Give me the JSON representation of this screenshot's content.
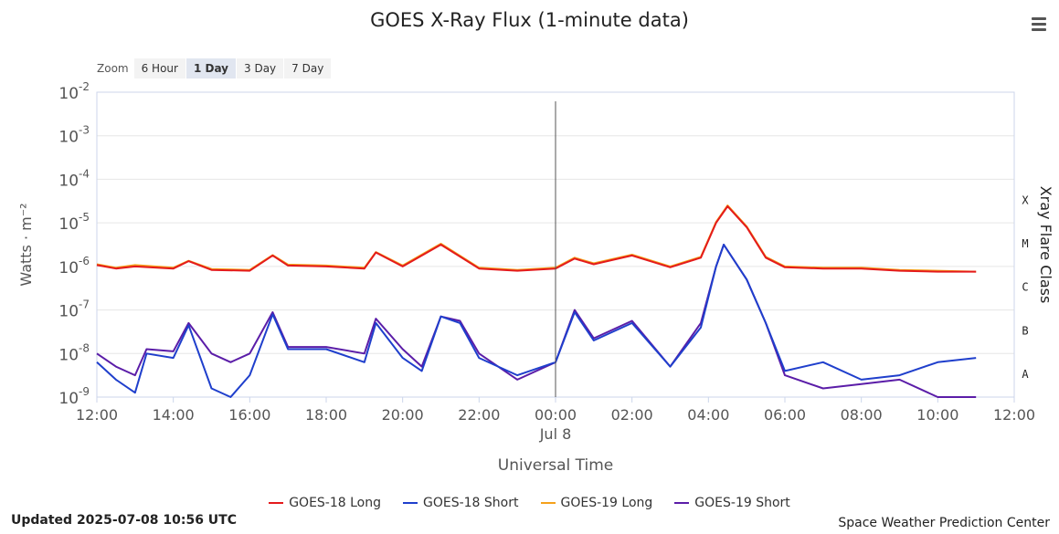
{
  "chart_data": {
    "type": "line",
    "title": "GOES X-Ray Flux (1-minute data)",
    "xlabel": "Universal Time",
    "ylabel": "Watts · m⁻²",
    "y2label": "Xray Flare Class",
    "yscale": "log",
    "ylim": [
      1e-09,
      0.01
    ],
    "xlim_hours": [
      12,
      36
    ],
    "x_ticks": [
      "12:00",
      "14:00",
      "16:00",
      "18:00",
      "20:00",
      "22:00",
      "00:00",
      "02:00",
      "04:00",
      "06:00",
      "08:00",
      "10:00",
      "12:00"
    ],
    "date_label": "Jul 8",
    "y_ticks": [
      {
        "base": "10",
        "exp": "-9"
      },
      {
        "base": "10",
        "exp": "-8"
      },
      {
        "base": "10",
        "exp": "-7"
      },
      {
        "base": "10",
        "exp": "-6"
      },
      {
        "base": "10",
        "exp": "-5"
      },
      {
        "base": "10",
        "exp": "-4"
      },
      {
        "base": "10",
        "exp": "-3"
      },
      {
        "base": "10",
        "exp": "-2"
      }
    ],
    "flare_classes": [
      {
        "label": "X",
        "level": -4
      },
      {
        "label": "M",
        "level": -5
      },
      {
        "label": "C",
        "level": -6
      },
      {
        "label": "B",
        "level": -7
      },
      {
        "label": "A",
        "level": -8
      }
    ],
    "grid": true,
    "legend_position": "bottom",
    "series": [
      {
        "name": "GOES-18 Long",
        "color": "#e41a1c",
        "points": [
          [
            12.0,
            -5.97
          ],
          [
            12.5,
            -6.05
          ],
          [
            13.0,
            -6.0
          ],
          [
            14.0,
            -6.05
          ],
          [
            14.4,
            -5.88
          ],
          [
            15.0,
            -6.08
          ],
          [
            16.0,
            -6.1
          ],
          [
            16.6,
            -5.75
          ],
          [
            17.0,
            -5.98
          ],
          [
            18.0,
            -6.0
          ],
          [
            19.0,
            -6.05
          ],
          [
            19.3,
            -5.68
          ],
          [
            20.0,
            -6.0
          ],
          [
            21.0,
            -5.5
          ],
          [
            22.0,
            -6.05
          ],
          [
            23.0,
            -6.1
          ],
          [
            24.0,
            -6.05
          ],
          [
            24.5,
            -5.82
          ],
          [
            25.0,
            -5.95
          ],
          [
            26.0,
            -5.75
          ],
          [
            27.0,
            -6.02
          ],
          [
            27.8,
            -5.8
          ],
          [
            28.2,
            -5.0
          ],
          [
            28.5,
            -4.62
          ],
          [
            29.0,
            -5.1
          ],
          [
            29.5,
            -5.8
          ],
          [
            30.0,
            -6.02
          ],
          [
            31.0,
            -6.05
          ],
          [
            32.0,
            -6.05
          ],
          [
            33.0,
            -6.1
          ],
          [
            34.0,
            -6.12
          ],
          [
            35.0,
            -6.12
          ]
        ]
      },
      {
        "name": "GOES-18 Short",
        "color": "#1f3fcc",
        "points": [
          [
            12.0,
            -8.2
          ],
          [
            12.5,
            -8.6
          ],
          [
            13.0,
            -8.9
          ],
          [
            13.3,
            -8.0
          ],
          [
            14.0,
            -8.1
          ],
          [
            14.4,
            -7.35
          ],
          [
            15.0,
            -8.8
          ],
          [
            15.5,
            -9.0
          ],
          [
            16.0,
            -8.5
          ],
          [
            16.6,
            -7.1
          ],
          [
            17.0,
            -7.9
          ],
          [
            18.0,
            -7.9
          ],
          [
            19.0,
            -8.2
          ],
          [
            19.3,
            -7.3
          ],
          [
            20.0,
            -8.1
          ],
          [
            20.5,
            -8.4
          ],
          [
            21.0,
            -7.15
          ],
          [
            21.5,
            -7.3
          ],
          [
            22.0,
            -8.1
          ],
          [
            23.0,
            -8.5
          ],
          [
            24.0,
            -8.2
          ],
          [
            24.5,
            -7.05
          ],
          [
            25.0,
            -7.7
          ],
          [
            26.0,
            -7.3
          ],
          [
            27.0,
            -8.3
          ],
          [
            27.8,
            -7.4
          ],
          [
            28.2,
            -6.0
          ],
          [
            28.4,
            -5.5
          ],
          [
            29.0,
            -6.3
          ],
          [
            29.5,
            -7.3
          ],
          [
            30.0,
            -8.4
          ],
          [
            31.0,
            -8.2
          ],
          [
            32.0,
            -8.6
          ],
          [
            33.0,
            -8.5
          ],
          [
            34.0,
            -8.2
          ],
          [
            35.0,
            -8.1
          ]
        ]
      },
      {
        "name": "GOES-19 Long",
        "color": "#f5a11a",
        "points": [
          [
            12.0,
            -5.95
          ],
          [
            12.5,
            -6.03
          ],
          [
            13.0,
            -5.97
          ],
          [
            14.0,
            -6.03
          ],
          [
            14.4,
            -5.87
          ],
          [
            15.0,
            -6.06
          ],
          [
            16.0,
            -6.08
          ],
          [
            16.6,
            -5.74
          ],
          [
            17.0,
            -5.96
          ],
          [
            18.0,
            -5.98
          ],
          [
            19.0,
            -6.03
          ],
          [
            19.3,
            -5.67
          ],
          [
            20.0,
            -5.98
          ],
          [
            21.0,
            -5.48
          ],
          [
            22.0,
            -6.03
          ],
          [
            23.0,
            -6.08
          ],
          [
            24.0,
            -6.03
          ],
          [
            24.5,
            -5.8
          ],
          [
            25.0,
            -5.93
          ],
          [
            26.0,
            -5.73
          ],
          [
            27.0,
            -6.0
          ],
          [
            27.8,
            -5.78
          ],
          [
            28.2,
            -4.98
          ],
          [
            28.5,
            -4.6
          ],
          [
            29.0,
            -5.08
          ],
          [
            29.5,
            -5.78
          ],
          [
            30.0,
            -6.0
          ],
          [
            31.0,
            -6.03
          ],
          [
            32.0,
            -6.03
          ],
          [
            33.0,
            -6.08
          ],
          [
            34.0,
            -6.1
          ],
          [
            35.0,
            -6.12
          ]
        ]
      },
      {
        "name": "GOES-19 Short",
        "color": "#5b1da8",
        "points": [
          [
            12.0,
            -8.0
          ],
          [
            12.5,
            -8.3
          ],
          [
            13.0,
            -8.5
          ],
          [
            13.3,
            -7.9
          ],
          [
            14.0,
            -7.95
          ],
          [
            14.4,
            -7.3
          ],
          [
            15.0,
            -8.0
          ],
          [
            15.5,
            -8.2
          ],
          [
            16.0,
            -8.0
          ],
          [
            16.6,
            -7.05
          ],
          [
            17.0,
            -7.85
          ],
          [
            18.0,
            -7.85
          ],
          [
            19.0,
            -8.0
          ],
          [
            19.3,
            -7.2
          ],
          [
            20.0,
            -7.9
          ],
          [
            20.5,
            -8.3
          ],
          [
            21.0,
            -7.15
          ],
          [
            21.5,
            -7.25
          ],
          [
            22.0,
            -8.0
          ],
          [
            23.0,
            -8.6
          ],
          [
            24.0,
            -8.2
          ],
          [
            24.5,
            -7.0
          ],
          [
            25.0,
            -7.65
          ],
          [
            26.0,
            -7.25
          ],
          [
            27.0,
            -8.3
          ],
          [
            27.8,
            -7.3
          ],
          [
            28.2,
            -6.0
          ],
          [
            28.4,
            -5.5
          ],
          [
            29.0,
            -6.3
          ],
          [
            29.5,
            -7.3
          ],
          [
            30.0,
            -8.5
          ],
          [
            31.0,
            -8.8
          ],
          [
            32.0,
            -8.7
          ],
          [
            33.0,
            -8.6
          ],
          [
            34.0,
            -9.0
          ],
          [
            35.0,
            -9.0
          ]
        ]
      }
    ]
  },
  "zoom": {
    "label": "Zoom",
    "buttons": [
      "6 Hour",
      "1 Day",
      "3 Day",
      "7 Day"
    ],
    "active": "1 Day"
  },
  "footer": {
    "updated": "Updated 2025-07-08 10:56 UTC",
    "credit": "Space Weather Prediction Center"
  },
  "icons": {
    "menu": "hamburger-menu-icon"
  }
}
